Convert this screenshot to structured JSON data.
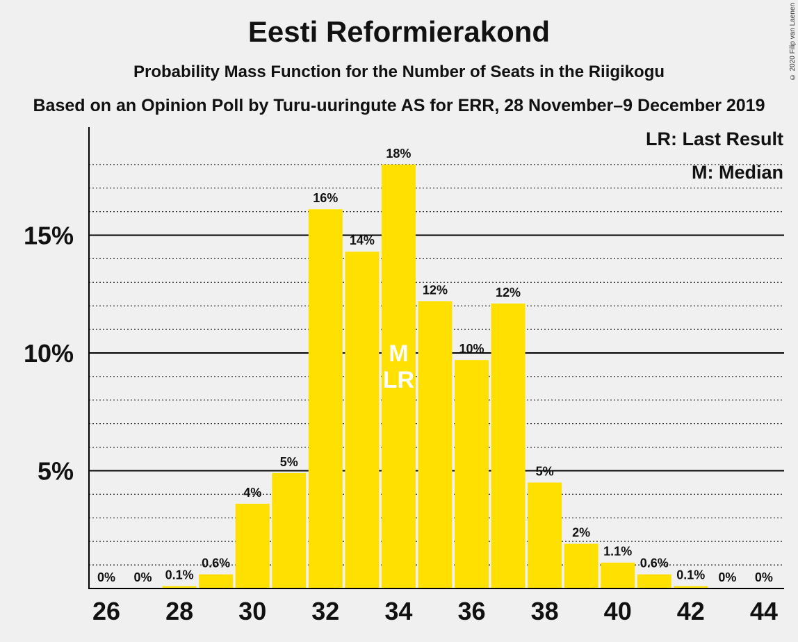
{
  "title": "Eesti Reformierakond",
  "subtitle": "Probability Mass Function for the Number of Seats in the Riigikogu",
  "subtitle2": "Based on an Opinion Poll by Turu-uuringute AS for ERR, 28 November–9 December 2019",
  "copyright": "© 2020 Filip van Laenen",
  "legend": {
    "last_result": "LR: Last Result",
    "median": "M: Median"
  },
  "colors": {
    "bar": "#FFE000",
    "background": "#f0f0f0",
    "axis": "#000000",
    "marker_text": "#ffffff"
  },
  "chart_data": {
    "type": "bar",
    "categories": [
      26,
      27,
      28,
      29,
      30,
      31,
      32,
      33,
      34,
      35,
      36,
      37,
      38,
      39,
      40,
      41,
      42,
      43,
      44
    ],
    "values": [
      0,
      0,
      0.1,
      0.6,
      3.6,
      4.9,
      16.1,
      14.3,
      18.0,
      12.2,
      9.7,
      12.1,
      4.5,
      1.9,
      1.1,
      0.6,
      0.1,
      0,
      0
    ],
    "labels": [
      "0%",
      "0%",
      "0.1%",
      "0.6%",
      "4%",
      "5%",
      "16%",
      "14%",
      "18%",
      "12%",
      "10%",
      "12%",
      "5%",
      "2%",
      "1.1%",
      "0.6%",
      "0.1%",
      "0%",
      "0%"
    ],
    "x_tick_labels": [
      "26",
      "28",
      "30",
      "32",
      "34",
      "36",
      "38",
      "40",
      "42",
      "44"
    ],
    "y_ticks": [
      5,
      10,
      15
    ],
    "y_tick_labels": [
      "5%",
      "10%",
      "15%"
    ],
    "ylim": [
      0,
      19.5
    ],
    "minor_grid_step": 1,
    "median": 34,
    "last_result": 34,
    "median_label": "M",
    "last_result_label": "LR",
    "legend_position": "top-right"
  }
}
